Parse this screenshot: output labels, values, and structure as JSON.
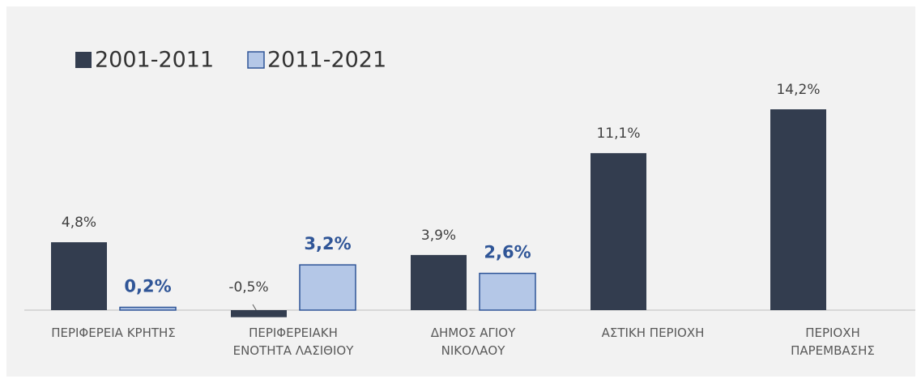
{
  "chart_data": {
    "type": "bar",
    "categories": [
      "ΠΕΡΙΦΕΡΕΙΑ ΚΡΗΤΗΣ",
      "ΠΕΡΙΦΕΡΕΙΑΚΗ\nΕΝΟΤΗΤΑ ΛΑΣΙΘΙΟΥ",
      "ΔΗΜΟΣ ΑΓΙΟΥ\nΝΙΚΟΛΑΟΥ",
      "ΑΣΤΙΚΗ ΠΕΡΙΟΧΗ",
      "ΠΕΡΙΟΧΗ\nΠΑΡΕΜΒΑΣΗΣ"
    ],
    "series": [
      {
        "name": "2001-2011",
        "color": "#333d4f",
        "values": [
          4.8,
          -0.5,
          3.9,
          11.1,
          14.2
        ],
        "value_labels": [
          "4,8%",
          "-0,5%",
          "3,9%",
          "11,1%",
          "14,2%"
        ]
      },
      {
        "name": "2011-2021",
        "color": "#b4c7e7",
        "values": [
          0.2,
          3.2,
          2.6,
          null,
          null
        ],
        "value_labels": [
          "0,2%",
          "3,2%",
          "2,6%",
          null,
          null
        ]
      }
    ],
    "legend": "top-left"
  }
}
